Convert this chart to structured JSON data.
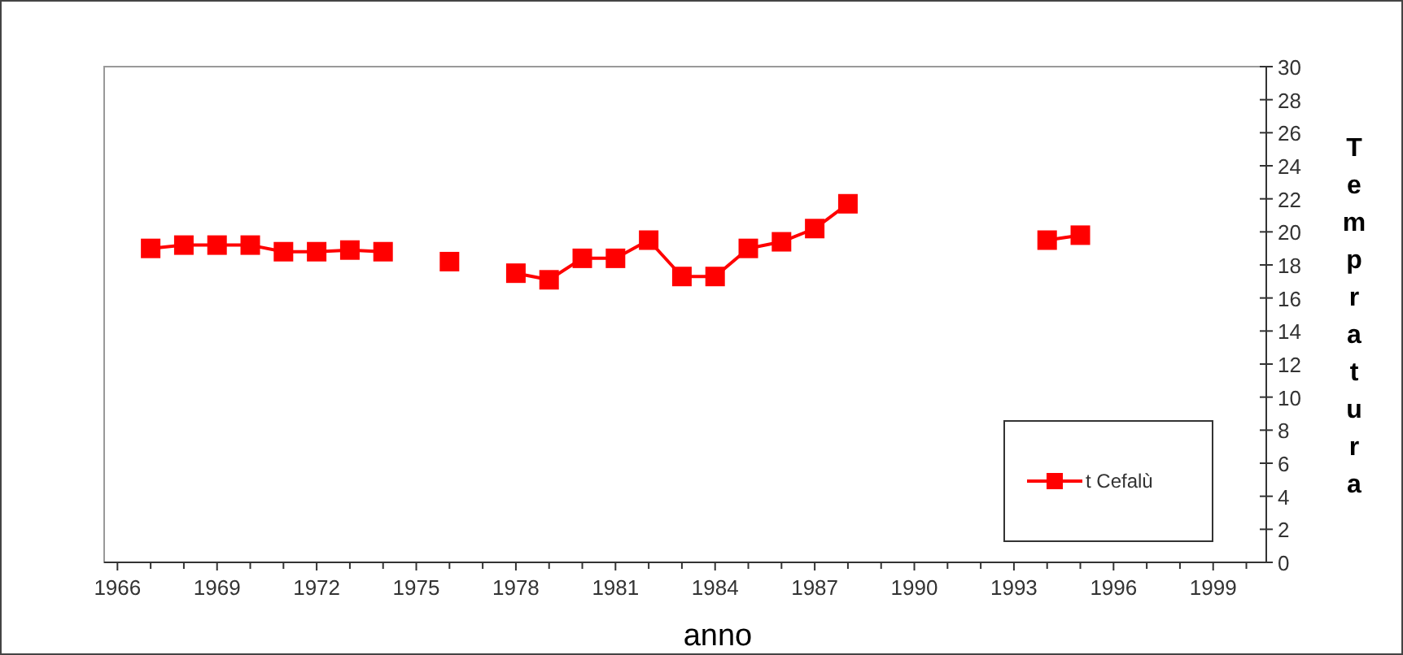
{
  "chart_data": {
    "type": "line",
    "xlabel": "anno",
    "ylabel": "Tempratura",
    "x": [
      1967,
      1968,
      1969,
      1970,
      1971,
      1972,
      1973,
      1974,
      1975,
      1976,
      1977,
      1978,
      1979,
      1980,
      1981,
      1982,
      1983,
      1984,
      1985,
      1986,
      1987,
      1988,
      1989,
      1994,
      1995
    ],
    "series": [
      {
        "name": "t Cefalù",
        "color": "#ff0000",
        "values": [
          19.0,
          19.2,
          19.2,
          19.2,
          18.8,
          18.8,
          18.9,
          18.8,
          null,
          18.2,
          null,
          17.5,
          17.1,
          18.4,
          18.4,
          19.5,
          17.3,
          17.3,
          19.0,
          19.4,
          20.2,
          21.7,
          null,
          19.5,
          19.8
        ]
      }
    ],
    "xlim": [
      1965.6,
      2000.6
    ],
    "xticks": [
      1966,
      1969,
      1972,
      1975,
      1978,
      1981,
      1984,
      1987,
      1990,
      1993,
      1996,
      1999
    ],
    "ylim": [
      0,
      30
    ],
    "yticks": [
      0,
      2,
      4,
      6,
      8,
      10,
      12,
      14,
      16,
      18,
      20,
      22,
      24,
      26,
      28,
      30
    ],
    "marker": "square",
    "legend": "bottom right",
    "grid": false
  }
}
